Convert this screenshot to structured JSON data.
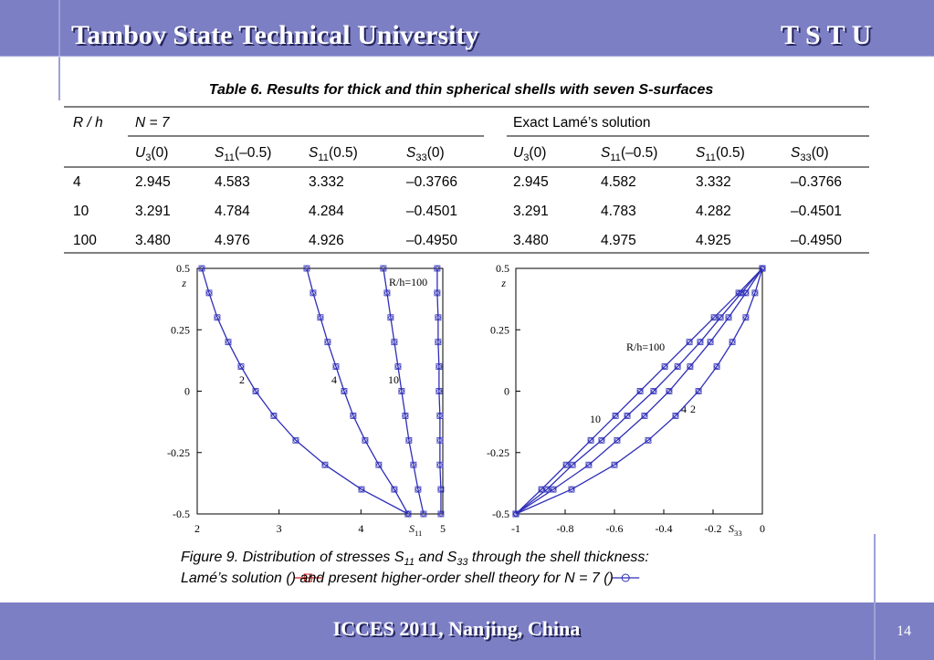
{
  "header": {
    "title": "Tambov State Technical University",
    "logo": "T S T U"
  },
  "table": {
    "caption": "Table 6.  Results for thick and thin spherical shells with seven S-surfaces",
    "group_headers": [
      "R / h",
      "N = 7",
      "Exact Lamé’s solution"
    ],
    "column_headers": [
      {
        "base": "U",
        "sub": "3",
        "arg": "(0)"
      },
      {
        "base": "S",
        "sub": "11",
        "arg": "(–0.5)"
      },
      {
        "base": "S",
        "sub": "11",
        "arg": "(0.5)"
      },
      {
        "base": "S",
        "sub": "33",
        "arg": "(0)"
      },
      {
        "base": "U",
        "sub": "3",
        "arg": "(0)"
      },
      {
        "base": "S",
        "sub": "11",
        "arg": "(–0.5)"
      },
      {
        "base": "S",
        "sub": "11",
        "arg": "(0.5)"
      },
      {
        "base": "S",
        "sub": "33",
        "arg": "(0)"
      }
    ],
    "rows": [
      [
        "4",
        "2.945",
        "4.583",
        "3.332",
        "–0.3766",
        "2.945",
        "4.582",
        "3.332",
        "–0.3766"
      ],
      [
        "10",
        "3.291",
        "4.784",
        "4.284",
        "–0.4501",
        "3.291",
        "4.783",
        "4.282",
        "–0.4501"
      ],
      [
        "100",
        "3.480",
        "4.976",
        "4.926",
        "–0.4950",
        "3.480",
        "4.975",
        "4.925",
        "–0.4950"
      ]
    ]
  },
  "chart_data": [
    {
      "type": "line",
      "x_label": {
        "base": "S",
        "sub": "11"
      },
      "y_label": "z",
      "xlim": [
        2,
        5
      ],
      "ylim": [
        -0.5,
        0.5
      ],
      "xticks": [
        2,
        3,
        4,
        5
      ],
      "yticks": [
        -0.5,
        -0.25,
        0,
        0.25,
        0.5
      ],
      "series": [
        {
          "name": "2",
          "color": "#2e2eb8",
          "x": [
            4.575,
            4.007,
            3.561,
            3.204,
            2.936,
            2.714,
            2.535,
            2.379,
            2.245,
            2.145,
            2.056
          ],
          "values": [
            -0.5,
            -0.4,
            -0.3,
            -0.2,
            -0.1,
            0,
            0.1,
            0.2,
            0.3,
            0.4,
            0.5
          ]
        },
        {
          "name": "4",
          "color": "#2e2eb8",
          "x": [
            4.575,
            4.408,
            4.218,
            4.051,
            3.906,
            3.795,
            3.695,
            3.594,
            3.505,
            3.416,
            3.338
          ],
          "values": [
            -0.5,
            -0.4,
            -0.3,
            -0.2,
            -0.1,
            0,
            0.1,
            0.2,
            0.3,
            0.4,
            0.5
          ]
        },
        {
          "name": "10",
          "color": "#2e2eb8",
          "x": [
            4.765,
            4.698,
            4.642,
            4.586,
            4.542,
            4.497,
            4.453,
            4.408,
            4.363,
            4.319,
            4.274
          ],
          "values": [
            -0.5,
            -0.4,
            -0.3,
            -0.2,
            -0.1,
            0,
            0.1,
            0.2,
            0.3,
            0.4,
            0.5
          ]
        },
        {
          "name": "R/h=100",
          "color": "#2e2eb8",
          "x": [
            4.977,
            4.977,
            4.965,
            4.965,
            4.965,
            4.954,
            4.954,
            4.943,
            4.943,
            4.932,
            4.932
          ],
          "values": [
            -0.5,
            -0.4,
            -0.3,
            -0.2,
            -0.1,
            0,
            0.1,
            0.2,
            0.3,
            0.4,
            0.5
          ]
        }
      ]
    },
    {
      "type": "line",
      "x_label": {
        "base": "S",
        "sub": "33"
      },
      "y_label": "z",
      "xlim": [
        -1,
        0
      ],
      "ylim": [
        -0.5,
        0.5
      ],
      "xticks": [
        -1,
        -0.8,
        -0.6,
        -0.4,
        -0.2,
        0
      ],
      "yticks": [
        -0.5,
        -0.25,
        0,
        0.25,
        0.5
      ],
      "series": [
        {
          "name": "R/h=100",
          "color": "#2e2eb8",
          "x": [
            -1,
            -0.896,
            -0.796,
            -0.696,
            -0.596,
            -0.496,
            -0.396,
            -0.296,
            -0.196,
            -0.096,
            0
          ],
          "values": [
            -0.5,
            -0.4,
            -0.3,
            -0.2,
            -0.1,
            0,
            0.1,
            0.2,
            0.3,
            0.4,
            0.5
          ]
        },
        {
          "name": "10",
          "color": "#2e2eb8",
          "x": [
            -1,
            -0.874,
            -0.77,
            -0.652,
            -0.548,
            -0.441,
            -0.344,
            -0.252,
            -0.17,
            -0.085,
            0
          ],
          "values": [
            -0.5,
            -0.4,
            -0.3,
            -0.2,
            -0.1,
            0,
            0.1,
            0.2,
            0.3,
            0.4,
            0.5
          ]
        },
        {
          "name": "4",
          "color": "#2e2eb8",
          "x": [
            -1,
            -0.848,
            -0.704,
            -0.589,
            -0.478,
            -0.378,
            -0.293,
            -0.211,
            -0.137,
            -0.067,
            0
          ],
          "values": [
            -0.5,
            -0.4,
            -0.3,
            -0.2,
            -0.1,
            0,
            0.1,
            0.2,
            0.3,
            0.4,
            0.5
          ]
        },
        {
          "name": "2",
          "color": "#2e2eb8",
          "x": [
            -1,
            -0.774,
            -0.6,
            -0.463,
            -0.352,
            -0.259,
            -0.185,
            -0.122,
            -0.067,
            -0.03,
            0
          ],
          "values": [
            -0.5,
            -0.4,
            -0.3,
            -0.2,
            -0.1,
            0,
            0.1,
            0.2,
            0.3,
            0.4,
            0.5
          ]
        }
      ]
    }
  ],
  "figure_caption": {
    "line1": [
      "Figure 9.  Distribution of stresses ",
      "S",
      "11",
      " and ",
      "S",
      "33",
      " through the shell thickness:"
    ],
    "line2": [
      "Lamé’s solution (",
      ") and present higher-order shell theory for ",
      "N",
      " = 7 (",
      ")"
    ]
  },
  "footer": {
    "text": "ICCES 2011, Nanjing, China",
    "page": "14"
  }
}
